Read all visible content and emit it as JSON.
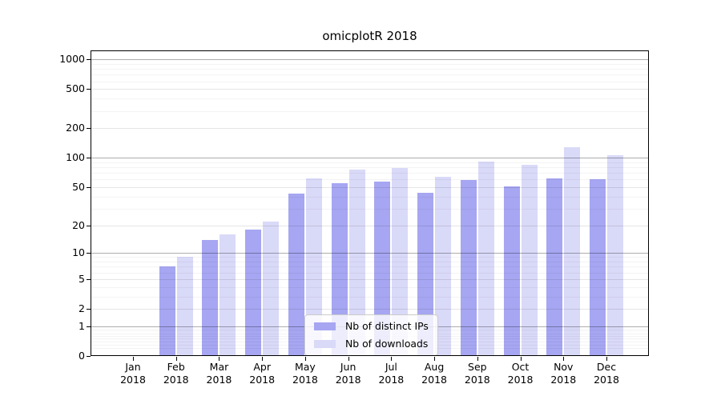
{
  "chart_data": {
    "type": "bar",
    "title": "omicplotR 2018",
    "categories": [
      "Jan 2018",
      "Feb 2018",
      "Mar 2018",
      "Apr 2018",
      "May 2018",
      "Jun 2018",
      "Jul 2018",
      "Aug 2018",
      "Sep 2018",
      "Oct 2018",
      "Nov 2018",
      "Dec 2018"
    ],
    "series": [
      {
        "name": "Nb of distinct IPs",
        "color": "#a6a6f2",
        "values": [
          0,
          7,
          14,
          18,
          43,
          55,
          57,
          44,
          59,
          51,
          62,
          60
        ]
      },
      {
        "name": "Nb of downloads",
        "color": "#d9d9f8",
        "values": [
          0,
          9,
          16,
          22,
          61,
          76,
          78,
          64,
          92,
          85,
          128,
          106
        ]
      }
    ],
    "yticks": [
      0,
      1,
      2,
      5,
      10,
      20,
      50,
      100,
      200,
      500,
      1000
    ],
    "major_gridlines": [
      1,
      10,
      100,
      1000
    ],
    "yscale": "log10(1+x)",
    "ylim": [
      0,
      1200
    ],
    "xlabel": "",
    "ylabel": "",
    "grid": true,
    "legend_position": "lower center",
    "frame_color": "#000000",
    "background_color": "#ffffff"
  }
}
